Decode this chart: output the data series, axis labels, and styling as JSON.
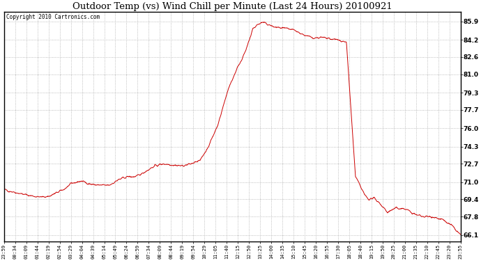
{
  "title": "Outdoor Temp (vs) Wind Chill per Minute (Last 24 Hours) 20100921",
  "copyright": "Copyright 2010 Cartronics.com",
  "yticks": [
    85.9,
    84.2,
    82.6,
    81.0,
    79.3,
    77.7,
    76.0,
    74.3,
    72.7,
    71.0,
    69.4,
    67.8,
    66.1
  ],
  "ylim": [
    65.5,
    86.8
  ],
  "line_color": "#cc0000",
  "background_color": "#ffffff",
  "grid_color": "#aaaaaa",
  "x_labels": [
    "23:59",
    "00:34",
    "01:09",
    "01:44",
    "02:19",
    "02:54",
    "03:29",
    "04:04",
    "04:39",
    "05:14",
    "05:49",
    "06:24",
    "06:59",
    "07:34",
    "08:09",
    "08:44",
    "09:19",
    "09:54",
    "10:29",
    "11:05",
    "11:40",
    "12:15",
    "12:50",
    "13:25",
    "14:00",
    "14:35",
    "15:10",
    "15:45",
    "16:20",
    "16:55",
    "17:30",
    "18:05",
    "18:40",
    "19:15",
    "19:50",
    "20:25",
    "21:00",
    "21:35",
    "22:10",
    "22:45",
    "23:20",
    "23:55"
  ],
  "ctrl_t": [
    0.0,
    0.02,
    0.05,
    0.08,
    0.1,
    0.13,
    0.15,
    0.17,
    0.19,
    0.21,
    0.23,
    0.25,
    0.27,
    0.29,
    0.31,
    0.33,
    0.35,
    0.37,
    0.39,
    0.41,
    0.43,
    0.45,
    0.47,
    0.49,
    0.51,
    0.53,
    0.545,
    0.555,
    0.565,
    0.575,
    0.59,
    0.605,
    0.62,
    0.635,
    0.65,
    0.665,
    0.68,
    0.695,
    0.71,
    0.73,
    0.75,
    0.77,
    0.79,
    0.8,
    0.81,
    0.82,
    0.84,
    0.86,
    0.88,
    0.9,
    0.92,
    0.94,
    0.96,
    0.98,
    1.0
  ],
  "ctrl_v": [
    70.3,
    70.1,
    69.8,
    69.6,
    69.7,
    70.3,
    70.9,
    71.1,
    70.8,
    70.7,
    70.7,
    71.2,
    71.5,
    71.5,
    72.0,
    72.5,
    72.7,
    72.6,
    72.5,
    72.7,
    73.0,
    74.5,
    76.5,
    79.5,
    81.5,
    83.2,
    85.2,
    85.6,
    85.8,
    85.7,
    85.4,
    85.3,
    85.2,
    85.1,
    84.8,
    84.5,
    84.4,
    84.4,
    84.3,
    84.2,
    84.0,
    71.5,
    69.8,
    69.4,
    69.5,
    69.2,
    68.2,
    68.6,
    68.5,
    68.0,
    67.8,
    67.8,
    67.5,
    67.0,
    66.1
  ],
  "figsize": [
    6.9,
    3.75
  ],
  "dpi": 100
}
